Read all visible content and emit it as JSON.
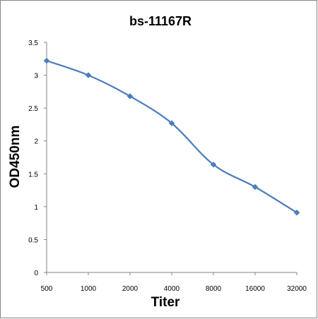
{
  "chart_data": {
    "type": "line",
    "title": "bs-11167R",
    "xlabel": "Titer",
    "ylabel": "OD450nm",
    "categories": [
      "500",
      "1000",
      "2000",
      "4000",
      "8000",
      "16000",
      "32000"
    ],
    "series": [
      {
        "values": [
          3.22,
          3.0,
          2.68,
          2.27,
          1.64,
          1.3,
          0.91
        ],
        "color": "#4a7ebb"
      }
    ],
    "ylim": [
      0,
      3.5
    ],
    "yticks": [
      "0",
      "0.5",
      "1",
      "1.5",
      "2",
      "2.5",
      "3",
      "3.5"
    ],
    "grid": false,
    "legend": "none",
    "marker": "diamond",
    "axis_color": "#868686"
  }
}
